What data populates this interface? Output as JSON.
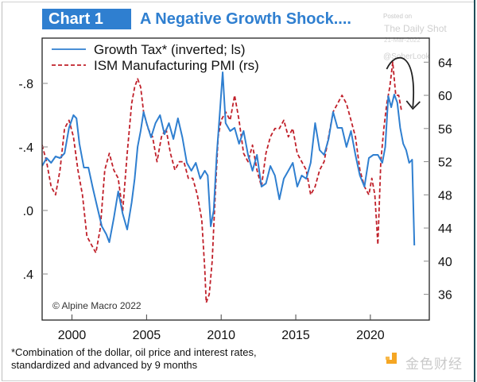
{
  "header": {
    "chart_label": "Chart 1",
    "title": "A Negative Growth Shock....",
    "watermark_posted": "Posted on",
    "watermark_source": "The Daily Shot",
    "watermark_date": "21-Mar-2022",
    "watermark_handle": "@SoberLook"
  },
  "footnote": {
    "line1": "*Combination of the dollar, oil price and interest rates,",
    "line2": "standardized and advanced by 9 months"
  },
  "logo": {
    "text": "金色财经",
    "color": "#f5a623"
  },
  "colors": {
    "growth_tax": "#2f7fd0",
    "ism": "#c0202a",
    "title_box": "#2f7fd0",
    "axis": "#222222",
    "arrow": "#222222"
  },
  "chart_data": {
    "type": "line",
    "title": "A Negative Growth Shock....",
    "xlabel": "",
    "ylabel_left": "Growth Tax (inverted)",
    "ylabel_right": "ISM Manufacturing PMI",
    "copyright": "© Alpine Macro 2022",
    "legend_position": "top-left",
    "legend": [
      {
        "name": "Growth Tax* (inverted; ls)",
        "style": "solid"
      },
      {
        "name": "ISM Manufacturing PMI (rs)",
        "style": "dashed"
      }
    ],
    "x_range": [
      1998.0,
      2023.95
    ],
    "x_ticks": [
      2000,
      2005,
      2010,
      2015,
      2020
    ],
    "x_tick_labels": [
      "2000",
      "2005",
      "2010",
      "2015",
      "2020"
    ],
    "y_left": {
      "inverted": true,
      "range": [
        -1.085,
        0.69
      ],
      "ticks": [
        -0.8,
        -0.4,
        0.0,
        0.4
      ],
      "tick_labels": [
        "-.8",
        "-.4",
        ".0",
        ".4"
      ]
    },
    "y_right": {
      "range": [
        32.9,
        66.9
      ],
      "ticks": [
        64,
        60,
        56,
        52,
        48,
        44,
        40,
        36
      ],
      "tick_labels": [
        "64",
        "60",
        "56",
        "52",
        "48",
        "44",
        "40",
        "36"
      ]
    },
    "annotation": {
      "type": "curved-arrow",
      "description": "downward arrow from 2021 peak",
      "from_x": 2021.2,
      "to_x": 2022.9
    },
    "series": [
      {
        "name": "Growth Tax* (inverted; ls)",
        "axis": "left",
        "x": [
          1998.0,
          1998.3,
          1998.6,
          1998.9,
          1999.2,
          1999.5,
          1999.8,
          2000.1,
          2000.3,
          2000.5,
          2000.8,
          2001.1,
          2001.4,
          2001.7,
          2002.0,
          2002.3,
          2002.5,
          2002.8,
          2003.1,
          2003.4,
          2003.7,
          2004.0,
          2004.2,
          2004.4,
          2004.6,
          2004.8,
          2005.0,
          2005.3,
          2005.6,
          2005.9,
          2006.2,
          2006.5,
          2006.8,
          2007.1,
          2007.4,
          2007.7,
          2008.0,
          2008.3,
          2008.6,
          2008.9,
          2009.1,
          2009.3,
          2009.5,
          2009.7,
          2009.9,
          2010.1,
          2010.3,
          2010.6,
          2010.9,
          2011.2,
          2011.5,
          2011.8,
          2012.1,
          2012.4,
          2012.7,
          2013.0,
          2013.3,
          2013.6,
          2013.9,
          2014.2,
          2014.5,
          2014.8,
          2015.1,
          2015.4,
          2015.7,
          2016.0,
          2016.3,
          2016.6,
          2016.9,
          2017.2,
          2017.5,
          2017.8,
          2018.1,
          2018.4,
          2018.7,
          2019.0,
          2019.3,
          2019.6,
          2019.9,
          2020.2,
          2020.5,
          2020.8,
          2021.0,
          2021.2,
          2021.4,
          2021.6,
          2021.8,
          2022.0,
          2022.2,
          2022.4,
          2022.6,
          2022.8,
          2022.95
        ],
        "values": [
          -0.28,
          -0.33,
          -0.3,
          -0.34,
          -0.33,
          -0.36,
          -0.52,
          -0.6,
          -0.58,
          -0.42,
          -0.27,
          -0.27,
          -0.14,
          -0.02,
          0.1,
          0.15,
          0.2,
          0.05,
          -0.12,
          0.02,
          0.12,
          -0.05,
          -0.2,
          -0.4,
          -0.5,
          -0.62,
          -0.55,
          -0.46,
          -0.55,
          -0.6,
          -0.48,
          -0.55,
          -0.45,
          -0.58,
          -0.46,
          -0.3,
          -0.25,
          -0.3,
          -0.2,
          -0.25,
          -0.22,
          0.1,
          -0.0,
          -0.35,
          -0.6,
          -0.87,
          -0.55,
          -0.5,
          -0.52,
          -0.42,
          -0.5,
          -0.35,
          -0.25,
          -0.35,
          -0.15,
          -0.17,
          -0.28,
          -0.22,
          -0.07,
          -0.2,
          -0.25,
          -0.3,
          -0.15,
          -0.22,
          -0.2,
          -0.3,
          -0.55,
          -0.38,
          -0.35,
          -0.45,
          -0.62,
          -0.52,
          -0.52,
          -0.4,
          -0.5,
          -0.35,
          -0.22,
          -0.15,
          -0.33,
          -0.35,
          -0.35,
          -0.3,
          -0.4,
          -0.72,
          -0.65,
          -0.73,
          -0.68,
          -0.52,
          -0.42,
          -0.38,
          -0.3,
          -0.32,
          0.22
        ]
      },
      {
        "name": "ISM Manufacturing PMI (rs)",
        "axis": "right",
        "x": [
          1998.0,
          1998.3,
          1998.6,
          1998.9,
          1999.2,
          1999.5,
          1999.8,
          2000.1,
          2000.4,
          2000.7,
          2001.0,
          2001.3,
          2001.6,
          2001.9,
          2002.2,
          2002.5,
          2002.8,
          2003.1,
          2003.4,
          2003.7,
          2004.0,
          2004.2,
          2004.4,
          2004.6,
          2004.8,
          2005.1,
          2005.4,
          2005.7,
          2006.0,
          2006.3,
          2006.6,
          2006.9,
          2007.2,
          2007.5,
          2007.8,
          2008.1,
          2008.4,
          2008.7,
          2008.9,
          2009.0,
          2009.2,
          2009.4,
          2009.6,
          2009.8,
          2010.0,
          2010.3,
          2010.6,
          2010.9,
          2011.2,
          2011.5,
          2011.8,
          2012.1,
          2012.4,
          2012.7,
          2013.0,
          2013.3,
          2013.6,
          2013.9,
          2014.2,
          2014.5,
          2014.8,
          2015.1,
          2015.4,
          2015.7,
          2016.0,
          2016.3,
          2016.6,
          2016.9,
          2017.2,
          2017.5,
          2017.8,
          2018.1,
          2018.4,
          2018.7,
          2019.0,
          2019.3,
          2019.6,
          2019.9,
          2020.1,
          2020.3,
          2020.5,
          2020.7,
          2020.9,
          2021.1,
          2021.3,
          2021.5,
          2021.7,
          2021.9,
          2022.1
        ],
        "values": [
          54,
          52,
          49,
          48,
          51,
          56,
          57,
          55,
          51,
          48,
          43,
          42,
          41,
          44,
          51,
          53,
          51,
          50,
          46,
          53,
          59,
          61,
          62,
          61,
          58,
          56,
          55,
          52,
          55,
          56,
          53,
          51,
          52,
          52,
          50,
          50,
          48,
          45,
          39,
          35,
          36,
          40,
          48,
          55,
          57,
          58,
          57,
          60,
          57,
          53,
          52,
          54,
          51,
          49,
          53,
          55,
          56,
          56,
          57,
          55,
          56,
          53,
          52,
          51,
          48,
          49,
          51,
          52,
          55,
          58,
          59,
          60,
          59,
          57,
          55,
          51,
          49,
          48,
          50,
          48,
          42,
          52,
          56,
          59,
          61,
          64,
          60,
          60,
          58
        ]
      }
    ]
  }
}
